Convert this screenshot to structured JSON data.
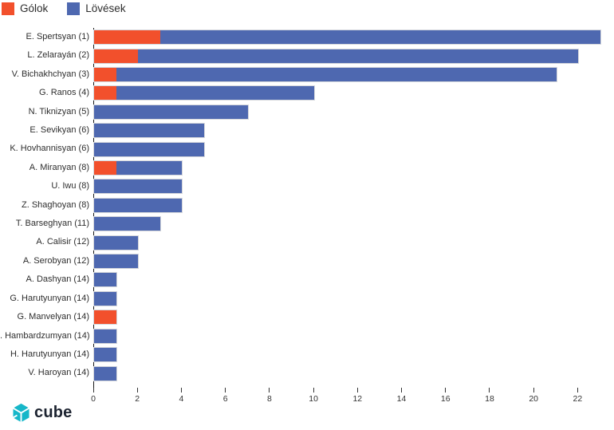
{
  "legend": {
    "items": [
      {
        "label": "Gólok",
        "color": "#F2502C"
      },
      {
        "label": "Lövések",
        "color": "#4E68B0"
      }
    ]
  },
  "chart_data": {
    "type": "bar",
    "orientation": "horizontal",
    "stacked": true,
    "title": "",
    "xlabel": "",
    "ylabel": "",
    "xlim": [
      0,
      23
    ],
    "xticks": [
      0,
      2,
      4,
      6,
      8,
      10,
      12,
      14,
      16,
      18,
      20,
      22
    ],
    "grid": false,
    "legend_position": "top-left",
    "categories": [
      "E. Spertsyan (1)",
      "L. Zelarayán (2)",
      "V. Bichakhchyan (3)",
      "G. Ranos (4)",
      "N. Tiknizyan (5)",
      "E. Sevikyan (6)",
      "K. Hovhannisyan (6)",
      "A. Miranyan (8)",
      "U. Iwu (8)",
      "Z. Shaghoyan (8)",
      "T. Barseghyan (11)",
      "A. Calisir (12)",
      "A. Serobyan (12)",
      "A. Dashyan (14)",
      "G. Harutyunyan (14)",
      "G. Manvelyan (14)",
      ". Hambardzumyan (14)",
      "H. Harutyunyan (14)",
      "V. Haroyan (14)"
    ],
    "series": [
      {
        "name": "Gólok",
        "color": "#F2502C",
        "values": [
          3,
          2,
          1,
          1,
          0,
          0,
          0,
          1,
          0,
          0,
          0,
          0,
          0,
          0,
          0,
          1,
          0,
          0,
          0
        ]
      },
      {
        "name": "Lövések",
        "color": "#4E68B0",
        "values": [
          20,
          20,
          20,
          9,
          7,
          5,
          5,
          3,
          4,
          4,
          3,
          2,
          2,
          1,
          1,
          0,
          1,
          1,
          1
        ]
      }
    ],
    "totals": [
      23,
      22,
      21,
      10,
      7,
      5,
      5,
      4,
      4,
      4,
      3,
      2,
      2,
      1,
      1,
      1,
      1,
      1,
      1
    ]
  },
  "footer": {
    "logo_text": "cube",
    "logo_color": "#16B7C9",
    "logo_text_color": "#1C2330"
  }
}
